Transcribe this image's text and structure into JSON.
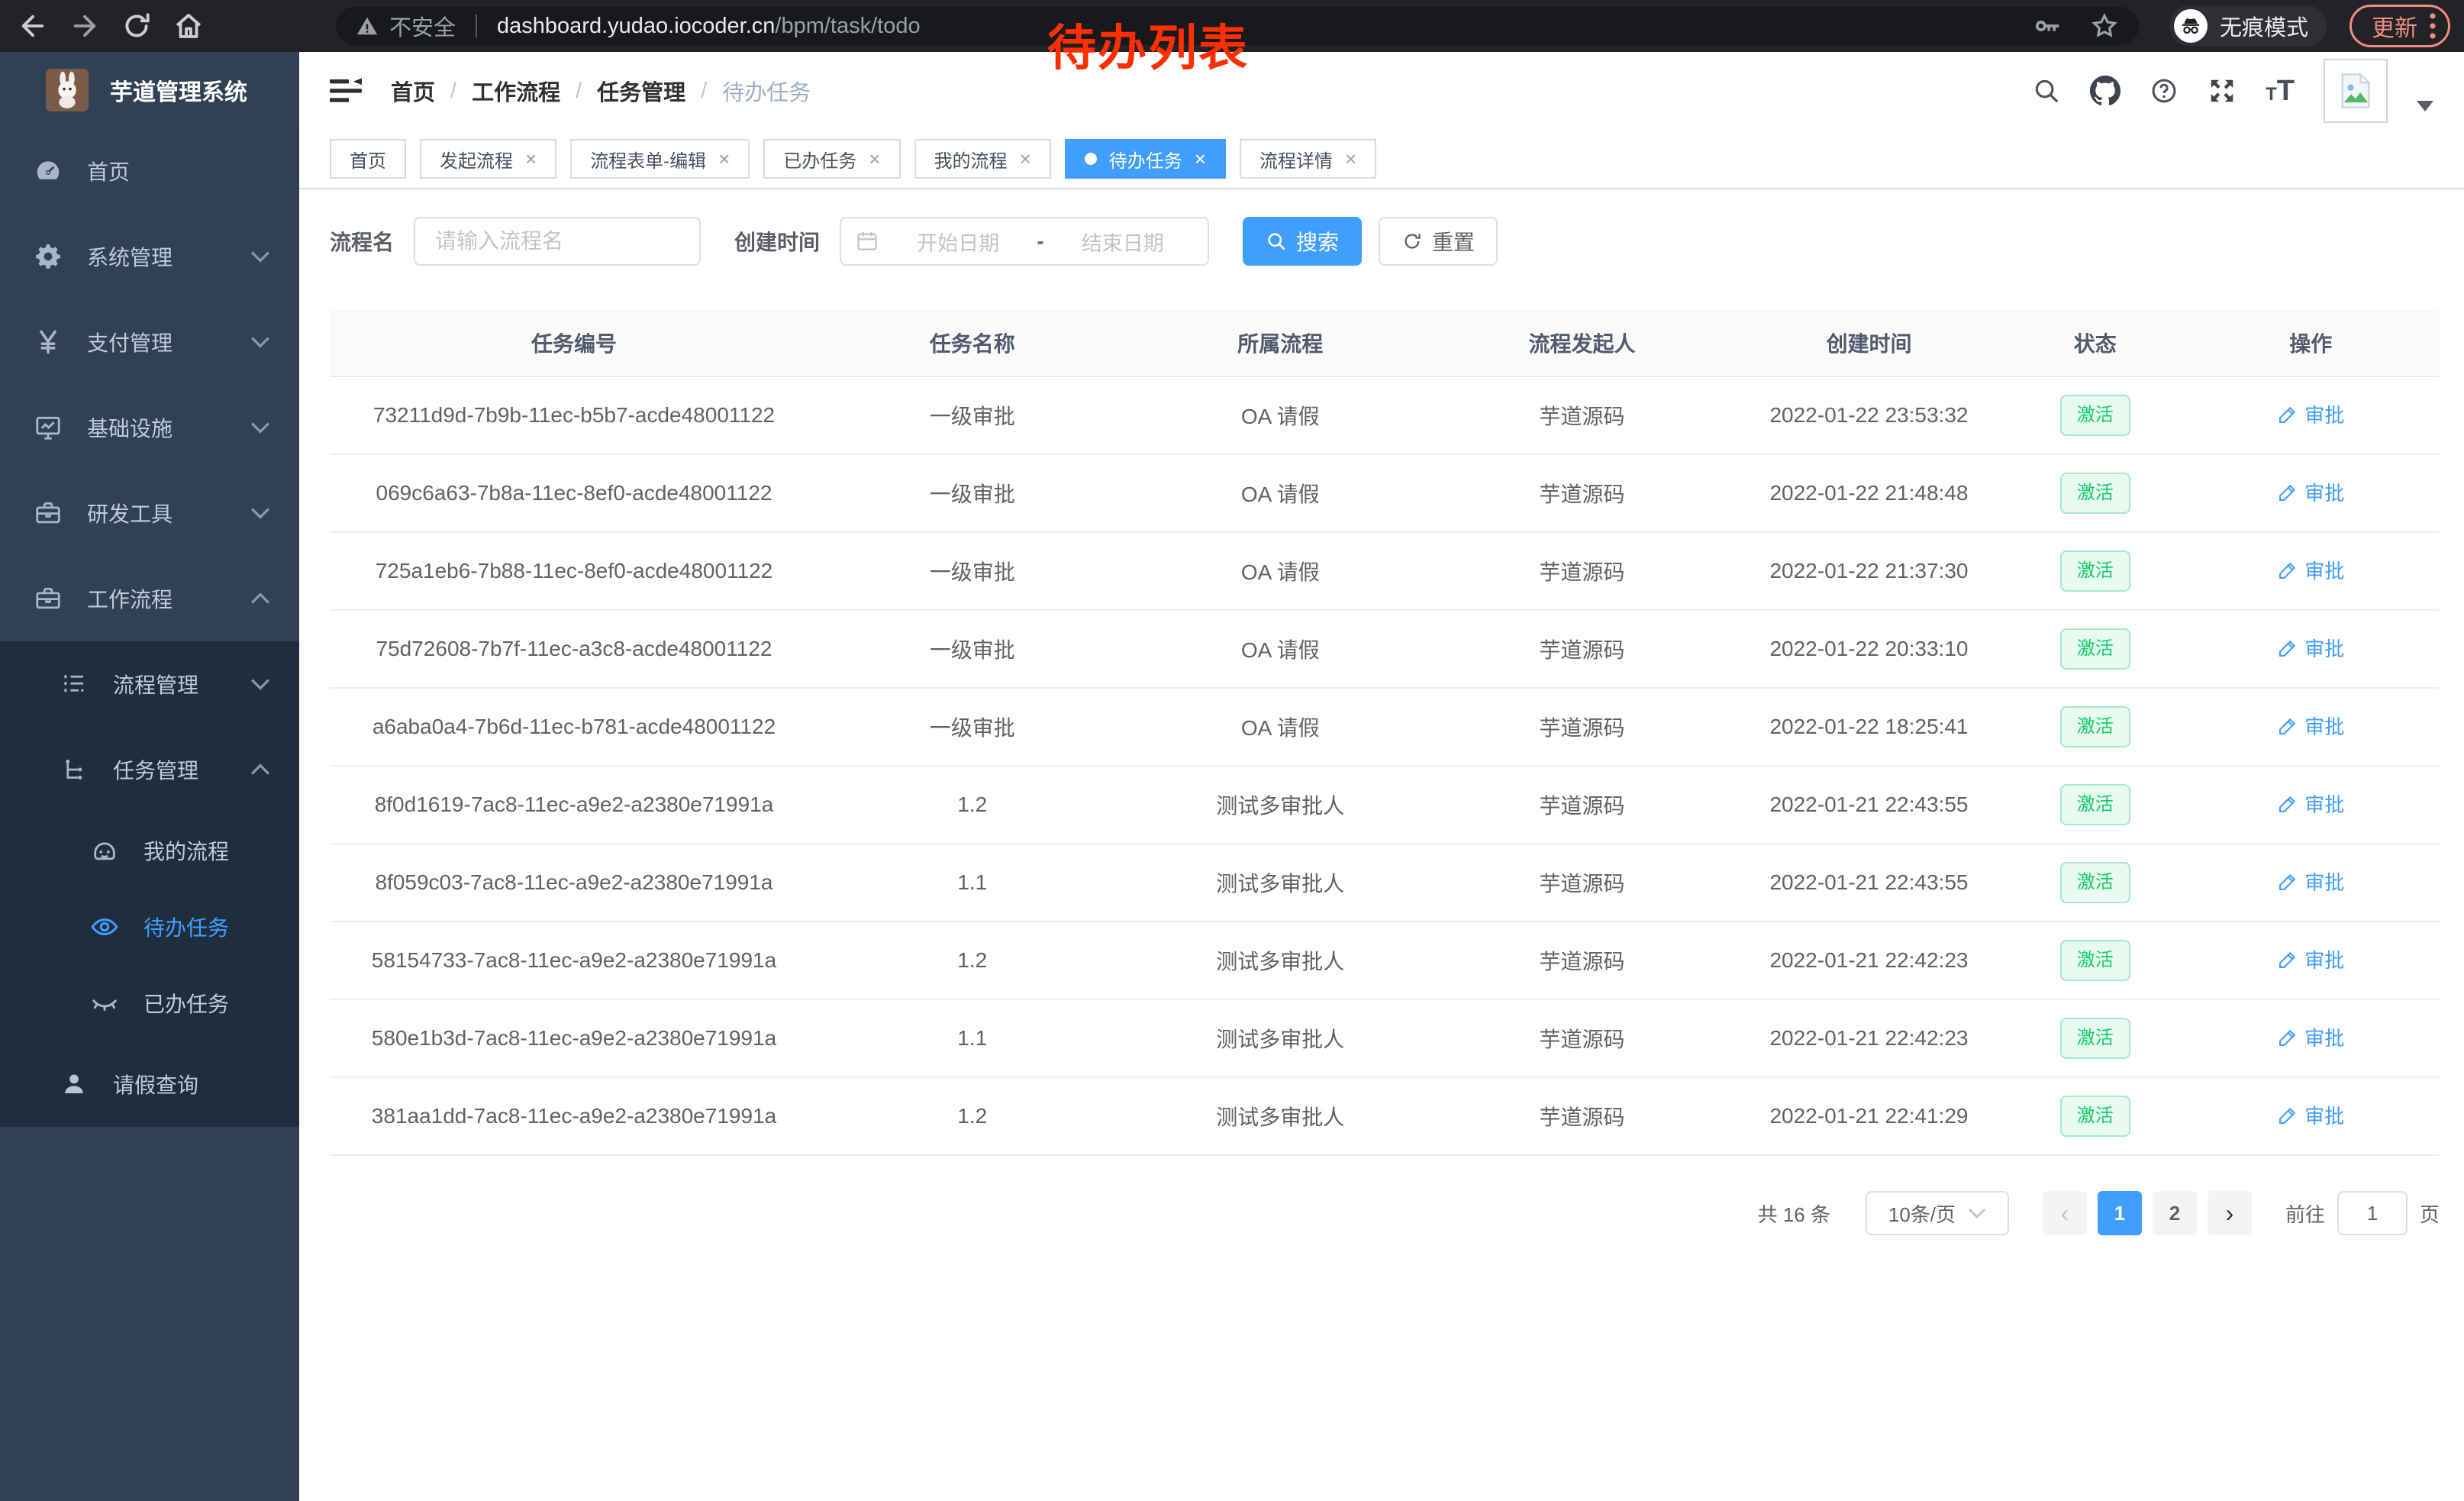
{
  "theme": {
    "accent": "#409eff",
    "success": "#13ce66",
    "annotation_red": "#ff2e00",
    "sidebar_bg": "#304156",
    "submenu_bg": "#1f2d3d",
    "update_red": "#f28b82"
  },
  "chrome": {
    "security_label": "不安全",
    "url_domain": "dashboard.yudao.iocoder.cn",
    "url_path": "/bpm/task/todo",
    "incognito_label": "无痕模式",
    "update_label": "更新"
  },
  "annotation": {
    "text": "待办列表"
  },
  "sidebar": {
    "title": "芋道管理系统",
    "menu": [
      {
        "key": "home",
        "label": "首页",
        "icon": "dashboard-icon",
        "arrow": ""
      },
      {
        "key": "system",
        "label": "系统管理",
        "icon": "gear-icon",
        "arrow": "down"
      },
      {
        "key": "payment",
        "label": "支付管理",
        "icon": "yen-icon",
        "arrow": "down"
      },
      {
        "key": "infra",
        "label": "基础设施",
        "icon": "monitor-icon",
        "arrow": "down"
      },
      {
        "key": "devtools",
        "label": "研发工具",
        "icon": "toolbox-icon",
        "arrow": "down"
      },
      {
        "key": "workflow",
        "label": "工作流程",
        "icon": "briefcase-icon",
        "arrow": "up"
      }
    ],
    "submenu": [
      {
        "key": "process-mgmt",
        "label": "流程管理",
        "icon": "list-icon",
        "arrow": "down",
        "level": 2,
        "active": false
      },
      {
        "key": "task-mgmt",
        "label": "任务管理",
        "icon": "tree-icon",
        "arrow": "up",
        "level": 2,
        "active": false
      },
      {
        "key": "my-process",
        "label": "我的流程",
        "icon": "face-icon",
        "arrow": "",
        "level": 3,
        "active": false
      },
      {
        "key": "todo-task",
        "label": "待办任务",
        "icon": "eye-icon",
        "arrow": "",
        "level": 3,
        "active": true
      },
      {
        "key": "done-task",
        "label": "已办任务",
        "icon": "eye-closed-icon",
        "arrow": "",
        "level": 3,
        "active": false
      },
      {
        "key": "leave-query",
        "label": "请假查询",
        "icon": "user-icon",
        "arrow": "",
        "level": 2,
        "active": false
      }
    ]
  },
  "navbar": {
    "breadcrumb": [
      {
        "label": "首页",
        "current": false
      },
      {
        "label": "工作流程",
        "current": false
      },
      {
        "label": "任务管理",
        "current": false
      },
      {
        "label": "待办任务",
        "current": true
      }
    ]
  },
  "tabs": [
    {
      "key": "home",
      "label": "首页",
      "closable": false,
      "active": false
    },
    {
      "key": "start-process",
      "label": "发起流程",
      "closable": true,
      "active": false
    },
    {
      "key": "form-edit",
      "label": "流程表单-编辑",
      "closable": true,
      "active": false
    },
    {
      "key": "done-task",
      "label": "已办任务",
      "closable": true,
      "active": false
    },
    {
      "key": "my-process",
      "label": "我的流程",
      "closable": true,
      "active": false
    },
    {
      "key": "todo-task",
      "label": "待办任务",
      "closable": true,
      "active": true
    },
    {
      "key": "process-detail",
      "label": "流程详情",
      "closable": true,
      "active": false
    }
  ],
  "filters": {
    "name_label": "流程名",
    "name_placeholder": "请输入流程名",
    "time_label": "创建时间",
    "start_placeholder": "开始日期",
    "range_separator": "-",
    "end_placeholder": "结束日期",
    "search_label": "搜索",
    "reset_label": "重置"
  },
  "table": {
    "columns": [
      "任务编号",
      "任务名称",
      "所属流程",
      "流程发起人",
      "创建时间",
      "状态",
      "操作"
    ],
    "rows": [
      {
        "id": "73211d9d-7b9b-11ec-b5b7-acde48001122",
        "name": "一级审批",
        "process": "OA 请假",
        "starter": "芋道源码",
        "time": "2022-01-22 23:53:32",
        "status": "激活",
        "action": "审批"
      },
      {
        "id": "069c6a63-7b8a-11ec-8ef0-acde48001122",
        "name": "一级审批",
        "process": "OA 请假",
        "starter": "芋道源码",
        "time": "2022-01-22 21:48:48",
        "status": "激活",
        "action": "审批"
      },
      {
        "id": "725a1eb6-7b88-11ec-8ef0-acde48001122",
        "name": "一级审批",
        "process": "OA 请假",
        "starter": "芋道源码",
        "time": "2022-01-22 21:37:30",
        "status": "激活",
        "action": "审批"
      },
      {
        "id": "75d72608-7b7f-11ec-a3c8-acde48001122",
        "name": "一级审批",
        "process": "OA 请假",
        "starter": "芋道源码",
        "time": "2022-01-22 20:33:10",
        "status": "激活",
        "action": "审批"
      },
      {
        "id": "a6aba0a4-7b6d-11ec-b781-acde48001122",
        "name": "一级审批",
        "process": "OA 请假",
        "starter": "芋道源码",
        "time": "2022-01-22 18:25:41",
        "status": "激活",
        "action": "审批"
      },
      {
        "id": "8f0d1619-7ac8-11ec-a9e2-a2380e71991a",
        "name": "1.2",
        "process": "测试多审批人",
        "starter": "芋道源码",
        "time": "2022-01-21 22:43:55",
        "status": "激活",
        "action": "审批"
      },
      {
        "id": "8f059c03-7ac8-11ec-a9e2-a2380e71991a",
        "name": "1.1",
        "process": "测试多审批人",
        "starter": "芋道源码",
        "time": "2022-01-21 22:43:55",
        "status": "激活",
        "action": "审批"
      },
      {
        "id": "58154733-7ac8-11ec-a9e2-a2380e71991a",
        "name": "1.2",
        "process": "测试多审批人",
        "starter": "芋道源码",
        "time": "2022-01-21 22:42:23",
        "status": "激活",
        "action": "审批"
      },
      {
        "id": "580e1b3d-7ac8-11ec-a9e2-a2380e71991a",
        "name": "1.1",
        "process": "测试多审批人",
        "starter": "芋道源码",
        "time": "2022-01-21 22:42:23",
        "status": "激活",
        "action": "审批"
      },
      {
        "id": "381aa1dd-7ac8-11ec-a9e2-a2380e71991a",
        "name": "1.2",
        "process": "测试多审批人",
        "starter": "芋道源码",
        "time": "2022-01-21 22:41:29",
        "status": "激活",
        "action": "审批"
      }
    ]
  },
  "pagination": {
    "total_label": "共 16 条",
    "page_size_label": "10条/页",
    "pages": [
      "1",
      "2"
    ],
    "active_page": "1",
    "goto_label": "前往",
    "goto_value": "1",
    "unit_label": "页"
  }
}
